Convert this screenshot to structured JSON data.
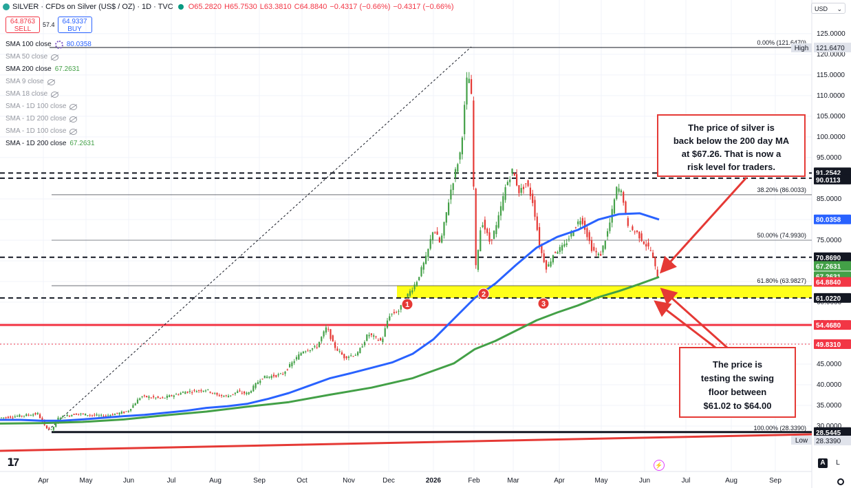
{
  "header": {
    "title": "SILVER · CFDs on Silver (US$ / OZ) · 1D · TVC",
    "open": "O65.2820",
    "high": "H65.7530",
    "low": "L63.3810",
    "close": "C64.8840",
    "change": "−0.4317 (−0.66%)",
    "change2": "−0.4317 (−0.66%)"
  },
  "trade": {
    "sell_price": "64.8763",
    "sell_label": "SELL",
    "spread": "57.4",
    "buy_price": "64.9337",
    "buy_label": "BUY"
  },
  "currency": "USD",
  "indicators": [
    {
      "label": "SMA 100 close",
      "value": "80.0358",
      "enabled": true,
      "color": "#2962ff"
    },
    {
      "label": "SMA 50 close",
      "value": "",
      "enabled": false
    },
    {
      "label": "SMA 200 close",
      "value": "67.2631",
      "enabled": true,
      "color": "#43a047"
    },
    {
      "label": "SMA 9 close",
      "value": "",
      "enabled": false
    },
    {
      "label": "SMA 18 close",
      "value": "",
      "enabled": false
    },
    {
      "label": "SMA - 1D 100 close",
      "value": "",
      "enabled": false
    },
    {
      "label": "SMA - 1D 200 close",
      "value": "",
      "enabled": false
    },
    {
      "label": "SMA - 1D 100 close",
      "value": "",
      "enabled": false
    },
    {
      "label": "SMA - 1D 200 close",
      "value": "67.2631",
      "enabled": true,
      "color": "#43a047"
    }
  ],
  "annotations": {
    "top_box": "The price of silver is back below the 200 day MA at $67.26. That is now a risk level for traders.",
    "bottom_box": "The price is testing the swing floor between $61.02 to $64.00",
    "markers": [
      "1",
      "2",
      "3"
    ]
  },
  "fib_labels": [
    {
      "text": "0.00% (121.6470)",
      "value": 121.647
    },
    {
      "text": "38.20% (86.0033)",
      "value": 86.0033
    },
    {
      "text": "50.00% (74.9930)",
      "value": 74.993
    },
    {
      "text": "61.80% (63.9827)",
      "value": 63.9827
    },
    {
      "text": "100.00% (28.3390)",
      "value": 28.339
    }
  ],
  "bottom_bar": {
    "auto": "A",
    "log": "L"
  },
  "chart_data": {
    "type": "candlestick",
    "y_scale": [
      121.647,
      28.339
    ],
    "y_ticks": [
      125,
      120,
      115,
      110,
      105,
      100,
      95,
      90,
      85,
      80,
      75,
      70,
      65,
      60,
      55,
      50,
      45,
      40,
      35,
      30
    ],
    "x_ticks": [
      "Apr",
      "May",
      "Jun",
      "Jul",
      "Aug",
      "Sep",
      "Oct",
      "Nov",
      "Dec",
      "2026",
      "Feb",
      "Mar",
      "Apr",
      "May",
      "Jun",
      "Jul",
      "Aug",
      "Sep"
    ],
    "price_levels": [
      {
        "label": "High",
        "value": "121.6470",
        "num": 121.647,
        "style": "solid-black",
        "color": "#131722"
      },
      {
        "label": "",
        "value": "91.2542",
        "num": 91.2542,
        "style": "dashed-black",
        "color": "#131722"
      },
      {
        "label": "",
        "value": "90.0113",
        "num": 90.0113,
        "style": "dashed-black",
        "color": "#131722"
      },
      {
        "label": "",
        "value": "80.0358",
        "num": 80.0358,
        "style": "tag",
        "color": "#2962ff"
      },
      {
        "label": "",
        "value": "70.8690",
        "num": 70.869,
        "style": "dashed-black",
        "color": "#131722"
      },
      {
        "label": "",
        "value": "67.2631",
        "num": 67.2631,
        "style": "tag",
        "color": "#43a047"
      },
      {
        "label": "",
        "value": "67.2631",
        "num": 67.2631,
        "style": "tag",
        "color": "#43a047"
      },
      {
        "label": "",
        "value": "64.8840",
        "num": 64.884,
        "style": "tag",
        "color": "#f23645"
      },
      {
        "label": "",
        "value": "61.0220",
        "num": 61.022,
        "style": "dashed-black",
        "color": "#131722"
      },
      {
        "label": "",
        "value": "54.4680",
        "num": 54.468,
        "style": "solid-red",
        "color": "#f23645"
      },
      {
        "label": "",
        "value": "49.8310",
        "num": 49.831,
        "style": "dotted-red",
        "color": "#f23645"
      },
      {
        "label": "",
        "value": "28.5445",
        "num": 28.5445,
        "style": "solid-black",
        "color": "#131722"
      },
      {
        "label": "Low",
        "value": "28.3390",
        "num": 28.339,
        "style": "none",
        "color": "#131722"
      }
    ],
    "highlight_zone": [
      61.022,
      63.9827
    ],
    "series": [
      {
        "name": "SMA 100",
        "color": "#2962ff",
        "points": [
          [
            0,
            31.5
          ],
          [
            30,
            31.5
          ],
          [
            60,
            31.3
          ],
          [
            90,
            31.3
          ],
          [
            120,
            31.6
          ],
          [
            150,
            32.0
          ],
          [
            180,
            32.4
          ],
          [
            210,
            32.7
          ],
          [
            240,
            33.2
          ],
          [
            270,
            33.7
          ],
          [
            300,
            34.4
          ],
          [
            330,
            34.8
          ],
          [
            360,
            35.4
          ],
          [
            390,
            36.6
          ],
          [
            420,
            38.0
          ],
          [
            450,
            39.8
          ],
          [
            480,
            41.6
          ],
          [
            510,
            42.8
          ],
          [
            540,
            44.1
          ],
          [
            570,
            45.4
          ],
          [
            600,
            47.5
          ],
          [
            630,
            51.0
          ],
          [
            660,
            56.0
          ],
          [
            690,
            61.0
          ],
          [
            720,
            64.5
          ],
          [
            750,
            69.0
          ],
          [
            780,
            73.2
          ],
          [
            810,
            75.8
          ],
          [
            840,
            77.5
          ],
          [
            870,
            80.0
          ],
          [
            900,
            81.3
          ],
          [
            930,
            81.5
          ],
          [
            958,
            80.0
          ]
        ]
      },
      {
        "name": "SMA 200",
        "color": "#43a047",
        "points": [
          [
            0,
            30.6
          ],
          [
            60,
            30.7
          ],
          [
            120,
            31.0
          ],
          [
            180,
            31.6
          ],
          [
            240,
            32.6
          ],
          [
            300,
            33.5
          ],
          [
            360,
            34.7
          ],
          [
            420,
            35.8
          ],
          [
            480,
            37.6
          ],
          [
            540,
            39.3
          ],
          [
            600,
            41.6
          ],
          [
            660,
            45.2
          ],
          [
            690,
            48.6
          ],
          [
            720,
            50.6
          ],
          [
            750,
            53.1
          ],
          [
            780,
            55.6
          ],
          [
            810,
            57.5
          ],
          [
            840,
            59.2
          ],
          [
            870,
            61.2
          ],
          [
            900,
            62.7
          ],
          [
            930,
            64.4
          ],
          [
            958,
            66.1
          ]
        ]
      }
    ],
    "price_path": [
      [
        0,
        32
      ],
      [
        30,
        32.5
      ],
      [
        55,
        33
      ],
      [
        65,
        30
      ],
      [
        75,
        29
      ],
      [
        85,
        32
      ],
      [
        110,
        33
      ],
      [
        150,
        32.4
      ],
      [
        185,
        33.5
      ],
      [
        205,
        37.2
      ],
      [
        235,
        36.7
      ],
      [
        270,
        38.3
      ],
      [
        300,
        38.8
      ],
      [
        315,
        37.5
      ],
      [
        330,
        37.2
      ],
      [
        345,
        38.3
      ],
      [
        360,
        37.8
      ],
      [
        380,
        41.7
      ],
      [
        410,
        42.5
      ],
      [
        440,
        48.2
      ],
      [
        460,
        49.1
      ],
      [
        475,
        54.0
      ],
      [
        485,
        49.5
      ],
      [
        500,
        46.7
      ],
      [
        520,
        47.5
      ],
      [
        535,
        52.3
      ],
      [
        555,
        50.5
      ],
      [
        565,
        56.8
      ],
      [
        580,
        58.0
      ],
      [
        592,
        61.6
      ],
      [
        605,
        64.8
      ],
      [
        620,
        71.0
      ],
      [
        630,
        78.0
      ],
      [
        640,
        74.0
      ],
      [
        655,
        87.0
      ],
      [
        670,
        97.0
      ],
      [
        680,
        116.5
      ],
      [
        687,
        107.0
      ],
      [
        690,
        66.0
      ],
      [
        700,
        80.0
      ],
      [
        712,
        74.5
      ],
      [
        722,
        78.5
      ],
      [
        735,
        88.0
      ],
      [
        745,
        92.0
      ],
      [
        755,
        86.5
      ],
      [
        765,
        89.0
      ],
      [
        775,
        84.0
      ],
      [
        785,
        73.0
      ],
      [
        795,
        68.0
      ],
      [
        805,
        72.0
      ],
      [
        820,
        73.5
      ],
      [
        835,
        78.0
      ],
      [
        845,
        80.5
      ],
      [
        860,
        73.0
      ],
      [
        872,
        71.0
      ],
      [
        885,
        78.0
      ],
      [
        897,
        88.0
      ],
      [
        905,
        86.0
      ],
      [
        912,
        78.0
      ],
      [
        925,
        77.0
      ],
      [
        938,
        74.0
      ],
      [
        946,
        72.5
      ],
      [
        952,
        68.5
      ],
      [
        958,
        65.0
      ]
    ]
  }
}
